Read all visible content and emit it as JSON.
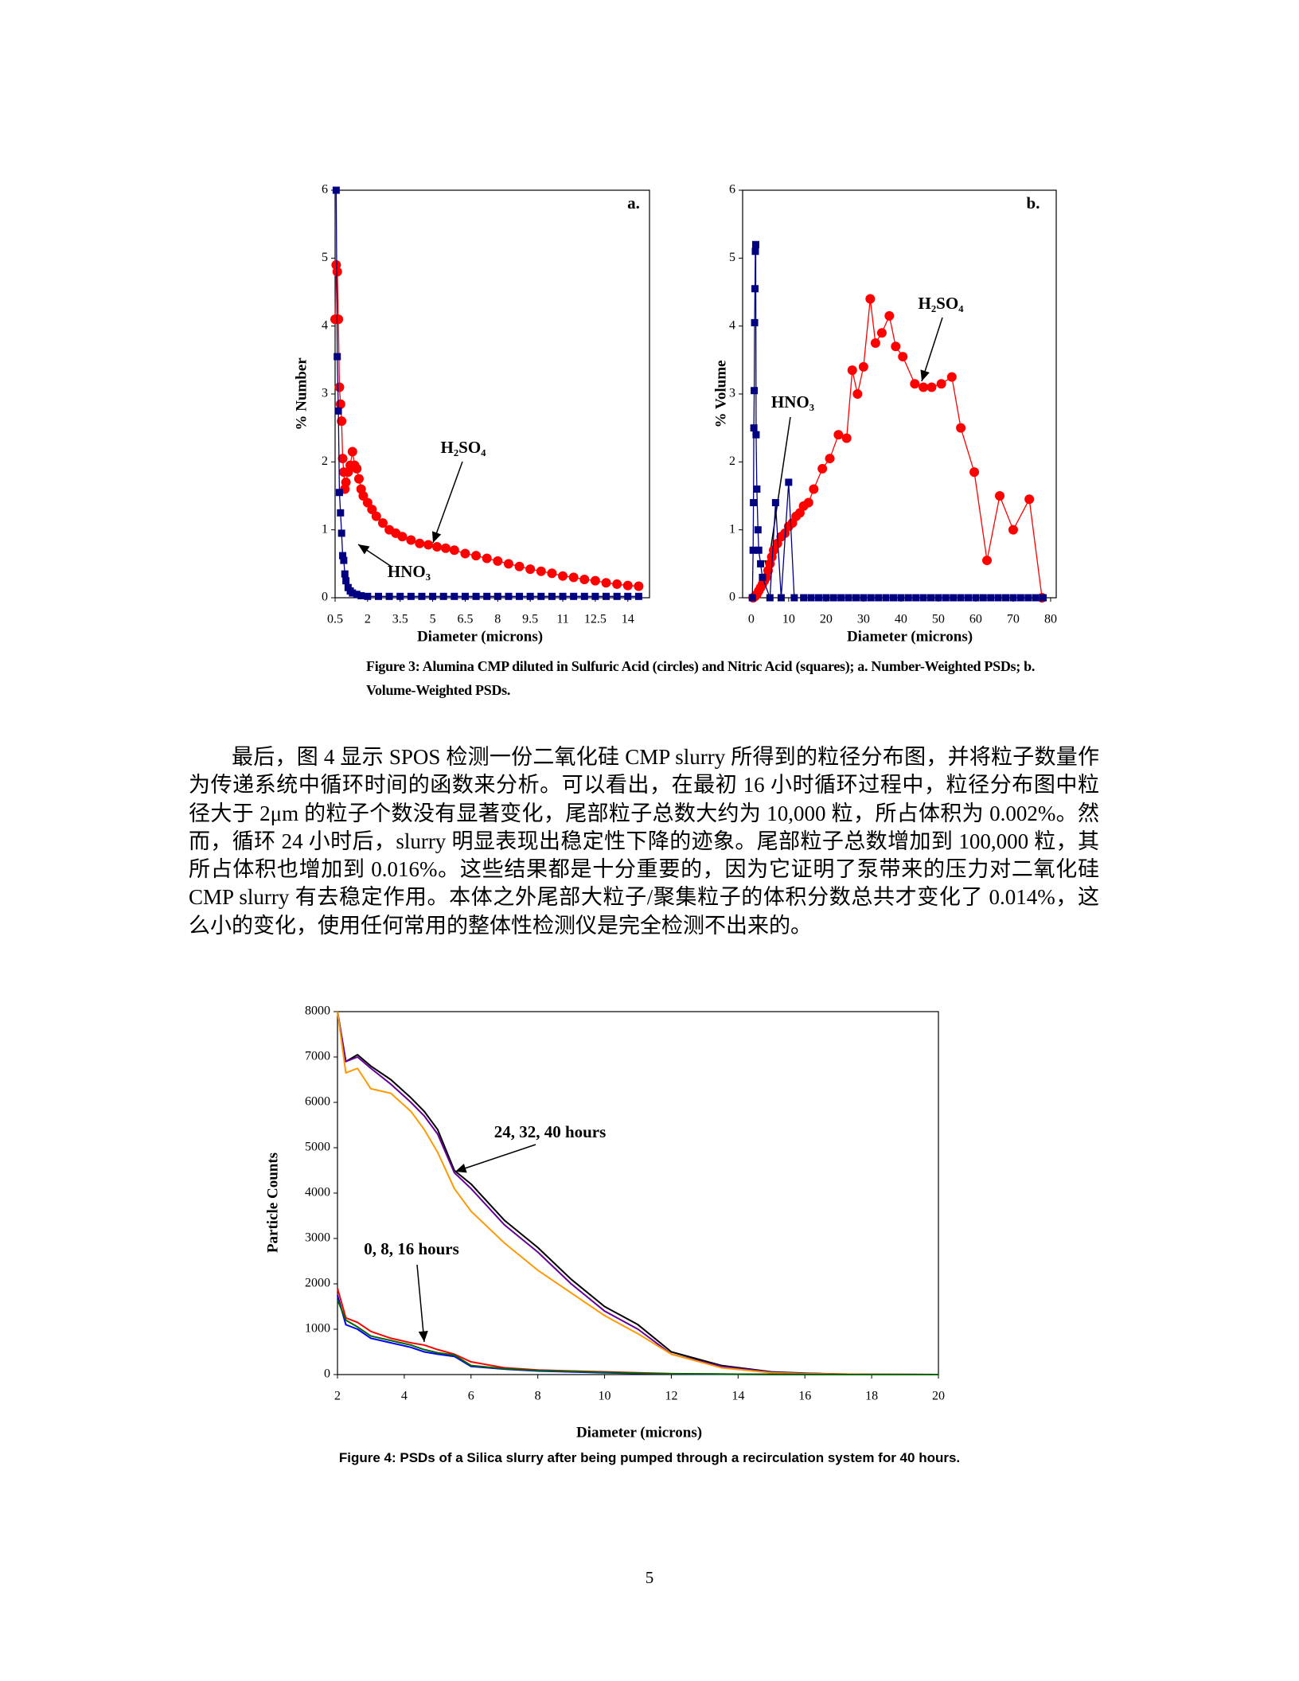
{
  "chart_data": [
    {
      "type": "line",
      "xlabel": "Diameter (microns)",
      "ylabel": "% Number",
      "xlim": [
        0.5,
        15
      ],
      "ylim": [
        0,
        6
      ],
      "xticks": [
        0.5,
        2,
        3.5,
        5,
        6.5,
        8,
        9.5,
        11,
        12.5,
        14
      ],
      "yticks": [
        0,
        1,
        2,
        3,
        4,
        5,
        6
      ],
      "annotations": [
        "a.",
        "H₂SO₄",
        "HNO₃"
      ],
      "series": [
        {
          "color": "#ff0000",
          "marker": "circle",
          "x": [
            0.5,
            0.55,
            0.6,
            0.65,
            0.7,
            0.75,
            0.8,
            0.85,
            0.9,
            0.95,
            1.0,
            1.1,
            1.2,
            1.3,
            1.4,
            1.5,
            1.6,
            1.7,
            1.8,
            2.0,
            2.2,
            2.4,
            2.7,
            3.0,
            3.3,
            3.6,
            4.0,
            4.4,
            4.8,
            5.2,
            5.6,
            6.0,
            6.5,
            7.0,
            7.5,
            8.0,
            8.5,
            9.0,
            9.5,
            10.0,
            10.5,
            11.0,
            11.5,
            12.0,
            12.5,
            13.0,
            13.5,
            14.0,
            14.5
          ],
          "values": [
            4.1,
            4.9,
            4.8,
            4.1,
            3.1,
            2.85,
            2.6,
            2.05,
            1.85,
            1.6,
            1.7,
            1.85,
            1.95,
            2.15,
            1.95,
            1.9,
            1.75,
            1.6,
            1.5,
            1.4,
            1.3,
            1.2,
            1.1,
            1.0,
            0.95,
            0.9,
            0.85,
            0.8,
            0.78,
            0.75,
            0.73,
            0.7,
            0.65,
            0.62,
            0.58,
            0.54,
            0.5,
            0.46,
            0.42,
            0.39,
            0.36,
            0.32,
            0.3,
            0.27,
            0.25,
            0.22,
            0.2,
            0.18,
            0.17
          ]
        },
        {
          "color": "#000080",
          "marker": "square",
          "x": [
            0.55,
            0.6,
            0.65,
            0.7,
            0.75,
            0.8,
            0.85,
            0.9,
            0.95,
            1.0,
            1.1,
            1.2,
            1.3,
            1.5,
            1.7,
            2,
            2.5,
            3,
            3.5,
            4,
            4.5,
            5,
            5.5,
            6,
            6.5,
            7,
            7.5,
            8,
            8.5,
            9,
            9.5,
            10,
            10.5,
            11,
            11.5,
            12,
            12.5,
            13,
            13.5,
            14,
            14.5
          ],
          "values": [
            6,
            3.55,
            2.75,
            1.55,
            1.25,
            0.95,
            0.62,
            0.55,
            0.35,
            0.25,
            0.15,
            0.1,
            0.07,
            0.05,
            0.03,
            0.02,
            0.02,
            0.02,
            0.02,
            0.02,
            0.02,
            0.02,
            0.02,
            0.02,
            0.02,
            0.02,
            0.02,
            0.02,
            0.02,
            0.02,
            0.02,
            0.02,
            0.02,
            0.02,
            0.02,
            0.02,
            0.02,
            0.02,
            0.02,
            0.02,
            0.02
          ]
        }
      ]
    },
    {
      "type": "line",
      "xlabel": "Diameter (microns)",
      "ylabel": "% Volume",
      "xlim": [
        -2.3,
        81.5
      ],
      "ylim": [
        0,
        6
      ],
      "xticks": [
        0,
        10,
        20,
        30,
        40,
        50,
        60,
        70,
        80
      ],
      "yticks": [
        0,
        1,
        2,
        3,
        4,
        5,
        6
      ],
      "annotations": [
        "b.",
        "H₂SO₄",
        "HNO₃"
      ],
      "series": [
        {
          "color": "#ff0000",
          "marker": "circle",
          "x": [
            0.5,
            1,
            1.5,
            2,
            2.5,
            3,
            3.5,
            4,
            4.5,
            5,
            5.5,
            6,
            7,
            8,
            9,
            10,
            11,
            12,
            13,
            14,
            15.3,
            16.7,
            19,
            21,
            23.3,
            25.5,
            27,
            28.4,
            30,
            31.8,
            33.2,
            34.9,
            36.9,
            38.6,
            40.5,
            43.7,
            46,
            48.2,
            50.8,
            53.6,
            56,
            59.6,
            63,
            66.4,
            70,
            74.3,
            77.7
          ],
          "values": [
            0,
            0.02,
            0.05,
            0.1,
            0.15,
            0.2,
            0.25,
            0.3,
            0.4,
            0.5,
            0.6,
            0.7,
            0.8,
            0.9,
            0.95,
            1.05,
            1.1,
            1.2,
            1.25,
            1.35,
            1.4,
            1.6,
            1.9,
            2.05,
            2.4,
            2.35,
            3.35,
            3.0,
            3.4,
            4.4,
            3.75,
            3.9,
            4.15,
            3.7,
            3.55,
            3.15,
            3.1,
            3.1,
            3.15,
            3.25,
            2.5,
            1.85,
            0.55,
            1.5,
            1.0,
            1.45,
            0
          ]
        },
        {
          "color": "#000080",
          "marker": "square",
          "x": [
            0.3,
            0.5,
            0.6,
            0.7,
            0.8,
            0.9,
            1.0,
            1.1,
            1.2,
            1.3,
            1.5,
            1.8,
            2,
            2.5,
            3,
            5,
            6.5,
            8,
            10,
            11.5,
            14,
            16,
            18,
            20,
            22,
            24,
            26,
            28,
            30,
            32,
            34,
            36,
            38,
            40,
            42,
            44,
            46,
            48,
            50,
            52,
            54,
            56,
            58,
            60,
            62,
            64,
            66,
            68,
            70,
            72,
            74,
            76,
            78
          ],
          "values": [
            0,
            0.7,
            1.4,
            2.5,
            3.05,
            4.05,
            4.55,
            5.1,
            5.2,
            2.4,
            1.6,
            1.0,
            0.7,
            0.5,
            0.3,
            0,
            1.4,
            0,
            1.7,
            0,
            0,
            0,
            0,
            0,
            0,
            0,
            0,
            0,
            0,
            0,
            0,
            0,
            0,
            0,
            0,
            0,
            0,
            0,
            0,
            0,
            0,
            0,
            0,
            0,
            0,
            0,
            0,
            0,
            0,
            0,
            0,
            0,
            0
          ]
        }
      ]
    },
    {
      "type": "line",
      "xlabel": "Diameter (microns)",
      "ylabel": "Particle Counts",
      "xlim": [
        2,
        20
      ],
      "ylim": [
        0,
        8000
      ],
      "xticks": [
        2,
        4,
        6,
        8,
        10,
        12,
        14,
        16,
        18,
        20
      ],
      "yticks": [
        0,
        1000,
        2000,
        3000,
        4000,
        5000,
        6000,
        7000,
        8000
      ],
      "annotations": [
        "24, 32, 40 hours",
        "0, 8, 16 hours"
      ],
      "x": [
        2,
        2.25,
        2.6,
        3,
        3.6,
        4.2,
        4.6,
        5,
        5.5,
        6,
        7,
        8,
        9,
        10,
        11,
        12,
        13.5,
        15,
        16,
        17,
        18,
        20
      ],
      "series": [
        {
          "color": "#000000",
          "values": [
            8000,
            6900,
            7050,
            6800,
            6500,
            6100,
            5800,
            5400,
            4500,
            4200,
            3400,
            2800,
            2100,
            1500,
            1100,
            500,
            200,
            60,
            30,
            10,
            5,
            0
          ]
        },
        {
          "color": "#660099",
          "values": [
            8000,
            6900,
            7000,
            6750,
            6400,
            6000,
            5700,
            5300,
            4450,
            4100,
            3300,
            2700,
            2000,
            1400,
            1000,
            450,
            180,
            50,
            25,
            10,
            5,
            0
          ]
        },
        {
          "color": "#ff9900",
          "values": [
            8000,
            6650,
            6750,
            6300,
            6200,
            5800,
            5400,
            4900,
            4100,
            3600,
            2900,
            2300,
            1800,
            1300,
            900,
            450,
            150,
            40,
            20,
            10,
            5,
            0
          ]
        },
        {
          "color": "#ff0000",
          "values": [
            1900,
            1250,
            1150,
            950,
            800,
            700,
            650,
            550,
            450,
            280,
            150,
            100,
            80,
            60,
            40,
            20,
            10,
            5,
            3,
            2,
            1,
            0
          ]
        },
        {
          "color": "#0000ff",
          "values": [
            1750,
            1100,
            1000,
            800,
            700,
            600,
            500,
            450,
            400,
            180,
            120,
            80,
            60,
            40,
            25,
            15,
            8,
            4,
            2,
            1,
            0,
            0
          ]
        },
        {
          "color": "#006600",
          "values": [
            1650,
            1200,
            1050,
            850,
            750,
            650,
            550,
            480,
            430,
            200,
            130,
            90,
            70,
            50,
            30,
            18,
            10,
            5,
            3,
            1,
            0,
            0
          ]
        }
      ]
    }
  ],
  "captions": {
    "figure3": "Figure 3: Alumina CMP diluted in Sulfuric Acid (circles) and Nitric Acid (squares); a.  Number-Weighted PSDs;  b. Volume-Weighted PSDs.",
    "figure4": "Figure 4: PSDs of a Silica slurry after being pumped through a recirculation system for 40 hours."
  },
  "paragraph": "最后，图 4 显示 SPOS 检测一份二氧化硅 CMP slurry 所得到的粒径分布图，并将粒子数量作为传递系统中循环时间的函数来分析。可以看出，在最初 16 小时循环过程中，粒径分布图中粒径大于 2μm 的粒子个数没有显著变化，尾部粒子总数大约为 10,000 粒，所占体积为 0.002%。然而，循环 24 小时后，slurry 明显表现出稳定性下降的迹象。尾部粒子总数增加到 100,000 粒，其所占体积也增加到 0.016%。这些结果都是十分重要的，因为它证明了泵带来的压力对二氧化硅 CMP slurry 有去稳定作用。本体之外尾部大粒子/聚集粒子的体积分数总共才变化了 0.014%，这么小的变化，使用任何常用的整体性检测仪是完全检测不出来的。",
  "page_number": "5"
}
